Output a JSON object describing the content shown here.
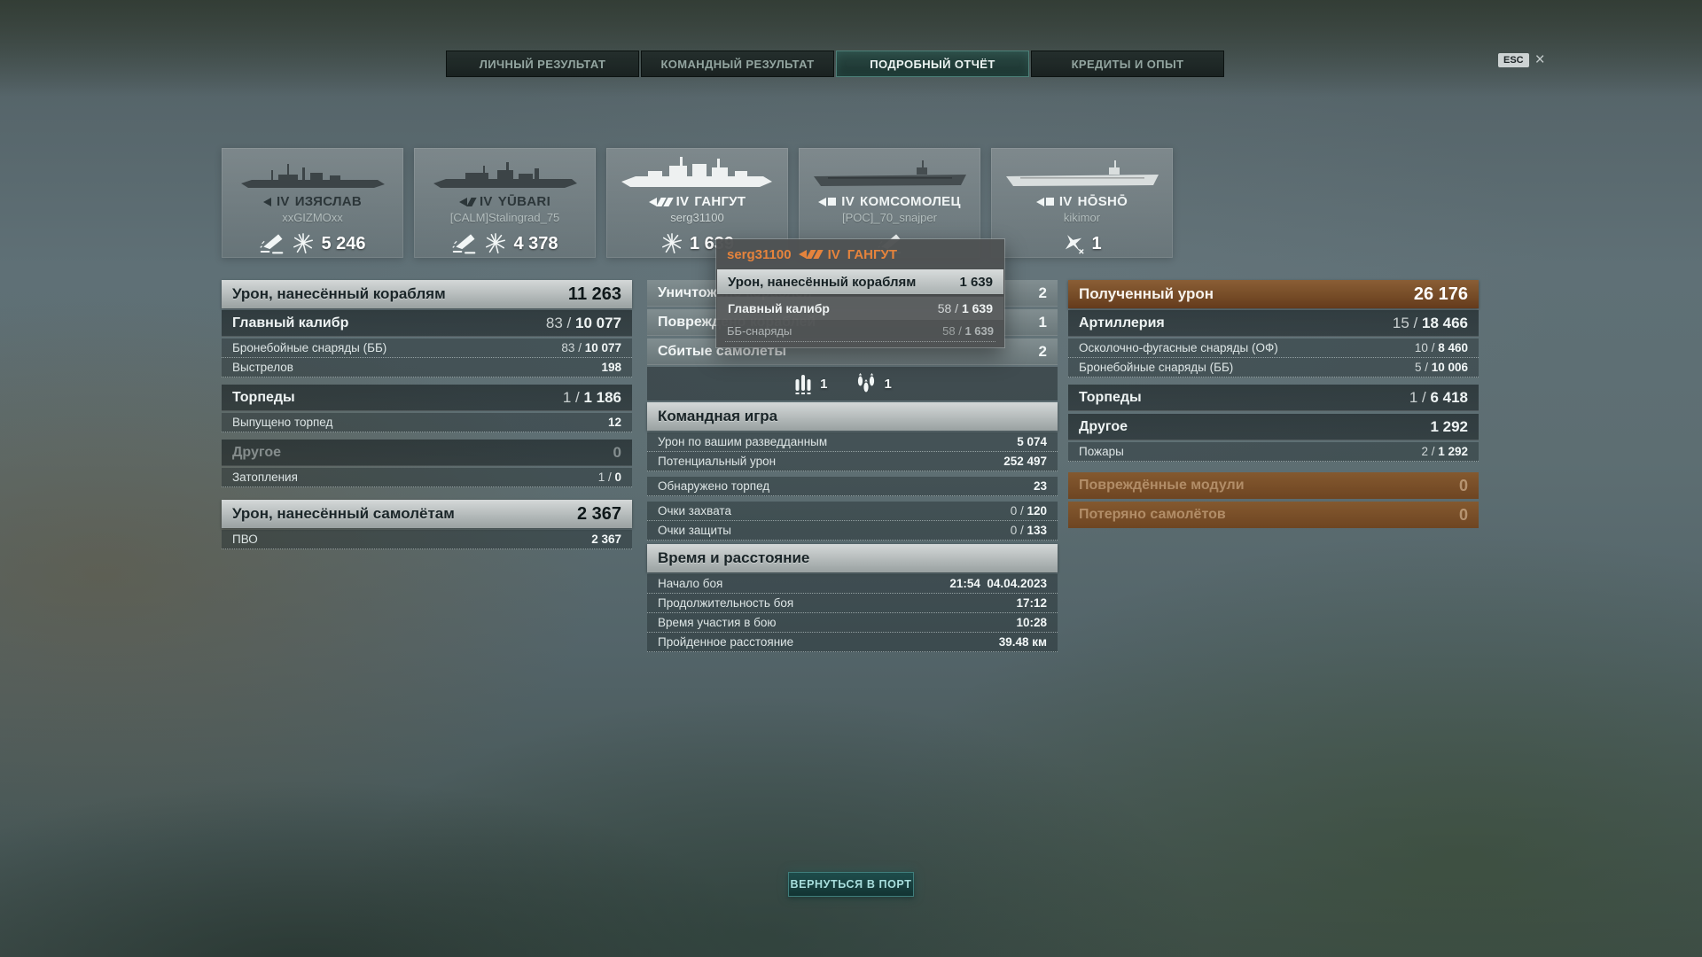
{
  "tabs": {
    "items": [
      {
        "label": "ЛИЧНЫЙ РЕЗУЛЬТАТ"
      },
      {
        "label": "КОМАНДНЫЙ РЕЗУЛЬТАТ"
      },
      {
        "label": "ПОДРОБНЫЙ ОТЧЁТ"
      },
      {
        "label": "КРЕДИТЫ И ОПЫТ"
      }
    ],
    "active_index": 2
  },
  "esc": {
    "key": "ESC",
    "close": "×"
  },
  "ships": [
    {
      "tier": "IV",
      "name": "ИЗЯСЛАВ",
      "cls": "destroyer",
      "player": "xxGIZMOxx",
      "value": "5 246",
      "icons": [
        "sink",
        "burst"
      ],
      "name_color": "#2c3639",
      "sil_color": "#3c4447",
      "highlight": false
    },
    {
      "tier": "IV",
      "name": "YŪBARI",
      "cls": "cruiser",
      "player": "[CALM]Stalingrad_75",
      "value": "4 378",
      "icons": [
        "sink",
        "burst"
      ],
      "name_color": "#2c3639",
      "sil_color": "#3c4447",
      "highlight": false
    },
    {
      "tier": "IV",
      "name": "ГАНГУТ",
      "cls": "battleship",
      "player": "serg31100",
      "value": "1 639",
      "icons": [
        "burst"
      ],
      "name_color": "#f6f9f9",
      "sil_color": "#eef1f1",
      "highlight": true
    },
    {
      "tier": "IV",
      "name": "КОМСОМОЛЕЦ",
      "cls": "carrier",
      "player": "[POC]_70_snajper",
      "value": "",
      "icons": [
        "sink"
      ],
      "name_color": "#f0f4f4",
      "sil_color": "#454d50",
      "highlight": false
    },
    {
      "tier": "IV",
      "name": "HŌSHŌ",
      "cls": "carrier",
      "player": "kikimor",
      "value": "1",
      "icons": [
        "plane"
      ],
      "name_color": "#f0f4f4",
      "sil_color": "#d9dede",
      "highlight": false
    }
  ],
  "tooltip": {
    "player": "serg31100",
    "tier": "IV",
    "ship": "ГАНГУТ",
    "rows": [
      {
        "type": "tt_hl",
        "label": "Урон, нанесённый кораблям",
        "value": "1 639"
      },
      {
        "type": "tt_row",
        "label": "Главный калибр",
        "value": "58 / 1 639"
      },
      {
        "type": "tt_dim",
        "label": "ББ-снаряды",
        "value": "58 / 1 639"
      }
    ]
  },
  "columns": {
    "left": {
      "rows": [
        {
          "type": "header",
          "label": "Урон, нанесённый кораблям",
          "value": "11 263"
        },
        {
          "type": "subheader",
          "label": "Главный калибр",
          "value": "83 / 10 077"
        },
        {
          "type": "detail",
          "label": "Бронебойные снаряды (ББ)",
          "value": "83 / 10 077"
        },
        {
          "type": "detail",
          "label": "Выстрелов",
          "value": "198"
        },
        {
          "type": "subheader gap8",
          "label": "Торпеды",
          "value": "1 / 1 186"
        },
        {
          "type": "detail",
          "label": "Выпущено торпед",
          "value": "12"
        },
        {
          "type": "subheader_gray gap8",
          "label": "Другое",
          "value": "0"
        },
        {
          "type": "detail",
          "label": "Затопления",
          "value": "1 / 0"
        },
        {
          "type": "header gap14",
          "label": "Урон, нанесённый самолётам",
          "value": "2 367"
        },
        {
          "type": "detail",
          "label": "ПВО",
          "value": "2 367"
        }
      ]
    },
    "middle": {
      "rows": [
        {
          "type": "subheader_light",
          "label": "Уничтожено кораблей",
          "value": "2"
        },
        {
          "type": "subheader_light gap3",
          "label": "Повреждено кораблей",
          "value": "1"
        },
        {
          "type": "subheader_light gap3",
          "label": "Сбитые самолеты",
          "value": "2"
        },
        {
          "type": "icons",
          "items": [
            {
              "icon": "shells",
              "count": "1"
            },
            {
              "icon": "bombs",
              "count": "1"
            }
          ]
        },
        {
          "type": "header",
          "label": "Командная игра",
          "value": ""
        },
        {
          "type": "detail",
          "label": "Урон по вашим разведданным",
          "value": "5 074"
        },
        {
          "type": "detail",
          "label": "Потенциальный урон",
          "value": "252 497"
        },
        {
          "type": "detail gap6",
          "label": "Обнаружено торпед",
          "value": "23"
        },
        {
          "type": "detail gap6",
          "label": "Очки захвата",
          "value": "0 / 120"
        },
        {
          "type": "detail",
          "label": "Очки защиты",
          "value": "0 / 133"
        },
        {
          "type": "header gap4",
          "label": "Время и расстояние",
          "value": ""
        },
        {
          "type": "detail",
          "label": "Начало боя",
          "value": "21:54  04.04.2023"
        },
        {
          "type": "detail",
          "label": "Продолжительность боя",
          "value": "17:12"
        },
        {
          "type": "detail",
          "label": "Время участия в бою",
          "value": "10:28"
        },
        {
          "type": "detail",
          "label": "Пройденное расстояние",
          "value": "39.48 км"
        }
      ]
    },
    "right": {
      "rows": [
        {
          "type": "header_orange",
          "label": "Полученный урон",
          "value": "26 176"
        },
        {
          "type": "subheader",
          "label": "Артиллерия",
          "value": "15 / 18 466"
        },
        {
          "type": "detail",
          "label": "Осколочно-фугасные снаряды (ОФ)",
          "value": "10 / 8 460"
        },
        {
          "type": "detail",
          "label": "Бронебойные снаряды (ББ)",
          "value": "5 / 10 006"
        },
        {
          "type": "subheader gap8",
          "label": "Торпеды",
          "value": "1 / 6 418"
        },
        {
          "type": "subheader gap3",
          "label": "Другое",
          "value": "1 292"
        },
        {
          "type": "detail",
          "label": "Пожары",
          "value": "2 / 1 292"
        },
        {
          "type": "header_orange_dim gap12",
          "label": "Повреждённые модули",
          "value": "0"
        },
        {
          "type": "header_orange_dim gap3",
          "label": "Потеряно самолётов",
          "value": "0"
        }
      ]
    }
  },
  "footer": {
    "back_button": "ВЕРНУТЬСЯ В ПОРТ"
  },
  "colors": {
    "accent_teal": "#3f7e7c",
    "header_silver": "#c4c9c9",
    "header_orange": "#744a26",
    "tooltip_orange": "#e5833c"
  }
}
